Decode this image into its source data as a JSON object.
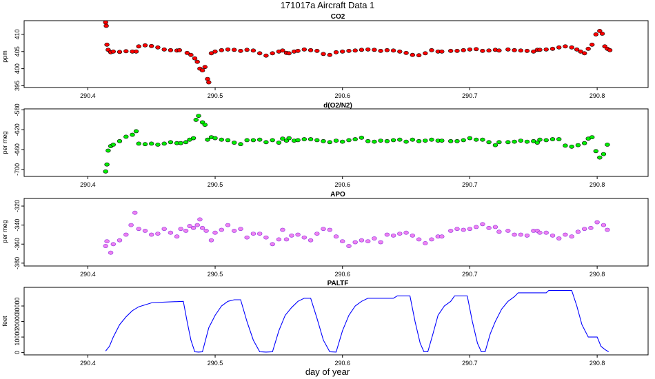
{
  "figure": {
    "title": "171017a   Aircraft Data 1",
    "xlabel": "day of year"
  },
  "chart_data": [
    {
      "id": "co2",
      "type": "scatter",
      "title": "CO2",
      "xlabel": "",
      "ylabel": "ppm",
      "xlim": [
        290.35,
        290.84
      ],
      "ylim": [
        394.5,
        414
      ],
      "yticks": [
        395,
        400,
        405,
        410
      ],
      "xticks": [
        290.4,
        290.5,
        290.6,
        290.7,
        290.8
      ],
      "color": "#ff0000",
      "edge_color": "#000000",
      "series": [
        {
          "x": [
            290.414,
            290.4145,
            290.415,
            290.416,
            290.418,
            290.42,
            290.425,
            290.43,
            290.435,
            290.438,
            290.44,
            290.445,
            290.45,
            290.455,
            290.46,
            290.465,
            290.47,
            290.472,
            290.478,
            290.481,
            290.484,
            290.486,
            290.488,
            290.49,
            290.492,
            290.494,
            290.495,
            290.497,
            290.5,
            290.505,
            290.51,
            290.515,
            290.52,
            290.525,
            290.53,
            290.535,
            290.54,
            290.545,
            290.55,
            290.553,
            290.556,
            290.558,
            290.562,
            290.565,
            290.57,
            290.575,
            290.58,
            290.585,
            290.59,
            290.595,
            290.6,
            290.605,
            290.61,
            290.615,
            290.62,
            290.625,
            290.63,
            290.635,
            290.64,
            290.645,
            290.65,
            290.655,
            290.66,
            290.665,
            290.67,
            290.675,
            290.678,
            290.685,
            290.69,
            290.695,
            290.7,
            290.705,
            290.71,
            290.715,
            290.72,
            290.723,
            290.73,
            290.735,
            290.74,
            290.745,
            290.75,
            290.753,
            290.755,
            290.76,
            290.765,
            290.77,
            290.775,
            290.78,
            290.784,
            290.787,
            290.79,
            290.793,
            290.796,
            290.799,
            290.802,
            290.804,
            290.806,
            290.808,
            290.81
          ],
          "y": [
            413.5,
            412.5,
            407,
            405.5,
            404.8,
            405,
            404.9,
            405.1,
            405,
            405,
            406.5,
            406.8,
            406.6,
            406.2,
            405.6,
            405.4,
            405.3,
            405.4,
            404.6,
            404,
            403,
            402,
            400,
            399.5,
            400.5,
            397,
            396,
            404.5,
            405,
            405.4,
            405.6,
            405.5,
            405.2,
            405.5,
            405.3,
            404.5,
            403.8,
            404.5,
            405,
            405.3,
            404.6,
            404.5,
            405,
            405.2,
            405.6,
            405.4,
            405.2,
            404.3,
            404,
            404.8,
            405,
            405.2,
            405.3,
            405.5,
            405.6,
            405.5,
            405.2,
            405.4,
            405.3,
            405,
            404.6,
            404,
            403.9,
            404.5,
            405.4,
            405,
            405,
            405.2,
            405.2,
            405.4,
            405.6,
            405.7,
            405.2,
            405.3,
            405.5,
            405.3,
            405.6,
            405.4,
            405.3,
            405.2,
            405,
            405.5,
            405.5,
            405.6,
            405.8,
            406.2,
            406.5,
            406.2,
            405.6,
            405,
            404.5,
            405.8,
            407,
            410,
            411,
            410.2,
            406.5,
            405.8,
            405.4
          ]
        }
      ]
    },
    {
      "id": "do2n2",
      "type": "scatter",
      "title": "d(O2/N2)",
      "xlabel": "",
      "ylabel": "per meg",
      "xlim": [
        290.35,
        290.84
      ],
      "ylim": [
        -714,
        -578
      ],
      "yticks": [
        -580,
        -620,
        -660,
        -700
      ],
      "xticks": [
        290.4,
        290.5,
        290.6,
        290.7,
        290.8
      ],
      "color": "#00ee00",
      "edge_color": "#000000",
      "series": [
        {
          "x": [
            290.414,
            290.415,
            290.416,
            290.418,
            290.42,
            290.425,
            290.43,
            290.435,
            290.438,
            290.44,
            290.445,
            290.45,
            290.455,
            290.46,
            290.465,
            290.47,
            290.473,
            290.477,
            290.48,
            290.483,
            290.485,
            290.487,
            290.49,
            290.492,
            290.494,
            290.497,
            290.5,
            290.505,
            290.51,
            290.515,
            290.52,
            290.525,
            290.53,
            290.535,
            290.54,
            290.545,
            290.55,
            290.553,
            290.556,
            290.558,
            290.562,
            290.565,
            290.57,
            290.575,
            290.58,
            290.585,
            290.59,
            290.595,
            290.6,
            290.605,
            290.61,
            290.615,
            290.62,
            290.625,
            290.63,
            290.635,
            290.64,
            290.645,
            290.65,
            290.655,
            290.66,
            290.665,
            290.67,
            290.675,
            290.678,
            290.685,
            290.69,
            290.695,
            290.7,
            290.705,
            290.71,
            290.715,
            290.72,
            290.723,
            290.73,
            290.735,
            290.74,
            290.745,
            290.75,
            290.753,
            290.755,
            290.76,
            290.765,
            290.77,
            290.775,
            290.78,
            290.785,
            290.79,
            290.793,
            290.796,
            290.799,
            290.802,
            290.805,
            290.808
          ],
          "y": [
            -704,
            -690,
            -662,
            -653,
            -650,
            -643,
            -634,
            -630,
            -623,
            -648,
            -649,
            -648,
            -650,
            -648,
            -645,
            -647,
            -647,
            -645,
            -640,
            -637,
            -600,
            -592,
            -605,
            -610,
            -640,
            -635,
            -637,
            -640,
            -641,
            -646,
            -649,
            -641,
            -641,
            -640,
            -645,
            -641,
            -646,
            -638,
            -642,
            -637,
            -642,
            -641,
            -639,
            -639,
            -641,
            -643,
            -645,
            -642,
            -644,
            -641,
            -639,
            -636,
            -643,
            -644,
            -642,
            -643,
            -641,
            -640,
            -644,
            -640,
            -643,
            -642,
            -640,
            -642,
            -642,
            -643,
            -643,
            -641,
            -637,
            -640,
            -640,
            -645,
            -651,
            -645,
            -645,
            -644,
            -642,
            -644,
            -643,
            -646,
            -640,
            -641,
            -639,
            -639,
            -652,
            -654,
            -651,
            -647,
            -638,
            -635,
            -663,
            -676,
            -669,
            -650
          ]
        }
      ]
    },
    {
      "id": "apo",
      "type": "scatter",
      "title": "APO",
      "xlabel": "",
      "ylabel": "per meg",
      "xlim": [
        290.35,
        290.84
      ],
      "ylim": [
        -383,
        -312
      ],
      "yticks": [
        -320,
        -340,
        -360,
        -380
      ],
      "xticks": [
        290.4,
        290.5,
        290.6,
        290.7,
        290.8
      ],
      "color": "#ee82ee",
      "edge_color": "#8a2be2",
      "series": [
        {
          "x": [
            290.414,
            290.415,
            290.418,
            290.42,
            290.425,
            290.43,
            290.434,
            290.437,
            290.44,
            290.445,
            290.45,
            290.455,
            290.46,
            290.465,
            290.47,
            290.473,
            290.477,
            290.48,
            290.483,
            290.486,
            290.488,
            290.49,
            290.493,
            290.497,
            290.5,
            290.505,
            290.51,
            290.515,
            290.52,
            290.525,
            290.53,
            290.535,
            290.54,
            290.545,
            290.55,
            290.553,
            290.556,
            290.56,
            290.565,
            290.57,
            290.575,
            290.58,
            290.585,
            290.59,
            290.595,
            290.6,
            290.605,
            290.61,
            290.615,
            290.62,
            290.625,
            290.63,
            290.635,
            290.64,
            290.645,
            290.65,
            290.655,
            290.66,
            290.665,
            290.67,
            290.675,
            290.678,
            290.685,
            290.69,
            290.695,
            290.7,
            290.705,
            290.71,
            290.715,
            290.72,
            290.723,
            290.73,
            290.735,
            290.74,
            290.745,
            290.75,
            290.753,
            290.755,
            290.76,
            290.765,
            290.77,
            290.775,
            290.78,
            290.785,
            290.79,
            290.795,
            290.8,
            290.805,
            290.808
          ],
          "y": [
            -362,
            -357,
            -369,
            -360,
            -356,
            -350,
            -340,
            -327,
            -344,
            -346,
            -350,
            -349,
            -344,
            -348,
            -352,
            -344,
            -346,
            -341,
            -343,
            -340,
            -334,
            -343,
            -346,
            -356,
            -348,
            -345,
            -340,
            -346,
            -344,
            -353,
            -349,
            -349,
            -353,
            -360,
            -355,
            -345,
            -355,
            -351,
            -350,
            -353,
            -356,
            -349,
            -344,
            -345,
            -352,
            -357,
            -362,
            -358,
            -356,
            -357,
            -354,
            -358,
            -350,
            -351,
            -349,
            -348,
            -351,
            -355,
            -359,
            -355,
            -352,
            -352,
            -346,
            -344,
            -345,
            -344,
            -342,
            -339,
            -343,
            -342,
            -347,
            -346,
            -350,
            -350,
            -351,
            -346,
            -346,
            -348,
            -348,
            -351,
            -354,
            -350,
            -352,
            -347,
            -344,
            -343,
            -337,
            -340,
            -345
          ]
        }
      ]
    },
    {
      "id": "paltf",
      "type": "line",
      "title": "PALTF",
      "xlabel": "",
      "ylabel": "feet",
      "xlim": [
        290.35,
        290.84
      ],
      "ylim": [
        -1500,
        42000
      ],
      "yticks": [
        0,
        10000,
        20000,
        30000
      ],
      "xticks": [
        290.4,
        290.5,
        290.6,
        290.7,
        290.8
      ],
      "color": "#0000ff",
      "series": [
        {
          "x": [
            290.414,
            290.417,
            290.42,
            290.425,
            290.43,
            290.435,
            290.44,
            290.45,
            290.46,
            290.475,
            290.478,
            290.481,
            290.484,
            290.487,
            290.49,
            290.495,
            290.5,
            290.505,
            290.51,
            290.515,
            290.52,
            290.525,
            290.53,
            290.535,
            290.54,
            290.545,
            290.55,
            290.555,
            290.56,
            290.565,
            290.57,
            290.575,
            290.58,
            290.585,
            290.59,
            290.595,
            290.6,
            290.605,
            290.61,
            290.615,
            290.62,
            290.63,
            290.64,
            290.643,
            290.653,
            290.657,
            290.661,
            290.664,
            290.667,
            290.671,
            290.675,
            290.68,
            290.685,
            290.688,
            290.698,
            290.702,
            290.706,
            290.709,
            290.712,
            290.716,
            290.72,
            290.725,
            290.73,
            290.735,
            290.738,
            290.748,
            290.76,
            290.762,
            290.77,
            290.78,
            290.784,
            290.788,
            290.793,
            290.797,
            290.8,
            290.803,
            290.806,
            290.809
          ],
          "y": [
            1000,
            4000,
            10000,
            18000,
            23000,
            27000,
            29500,
            32000,
            32500,
            33000,
            20000,
            8000,
            500,
            300,
            500,
            16000,
            24000,
            30000,
            33000,
            34000,
            34000,
            20000,
            8000,
            500,
            300,
            500,
            14000,
            24000,
            29000,
            33000,
            35000,
            35000,
            22000,
            8000,
            500,
            300,
            14000,
            24000,
            30000,
            33000,
            35000,
            35000,
            35000,
            36500,
            36500,
            20000,
            6000,
            500,
            500,
            12000,
            24000,
            30000,
            33000,
            36500,
            36500,
            20000,
            6000,
            500,
            500,
            12000,
            20000,
            28000,
            33000,
            36000,
            38500,
            38500,
            38500,
            40000,
            40000,
            40000,
            30000,
            18000,
            10000,
            10000,
            10000,
            4000,
            2000,
            500
          ]
        }
      ]
    }
  ]
}
